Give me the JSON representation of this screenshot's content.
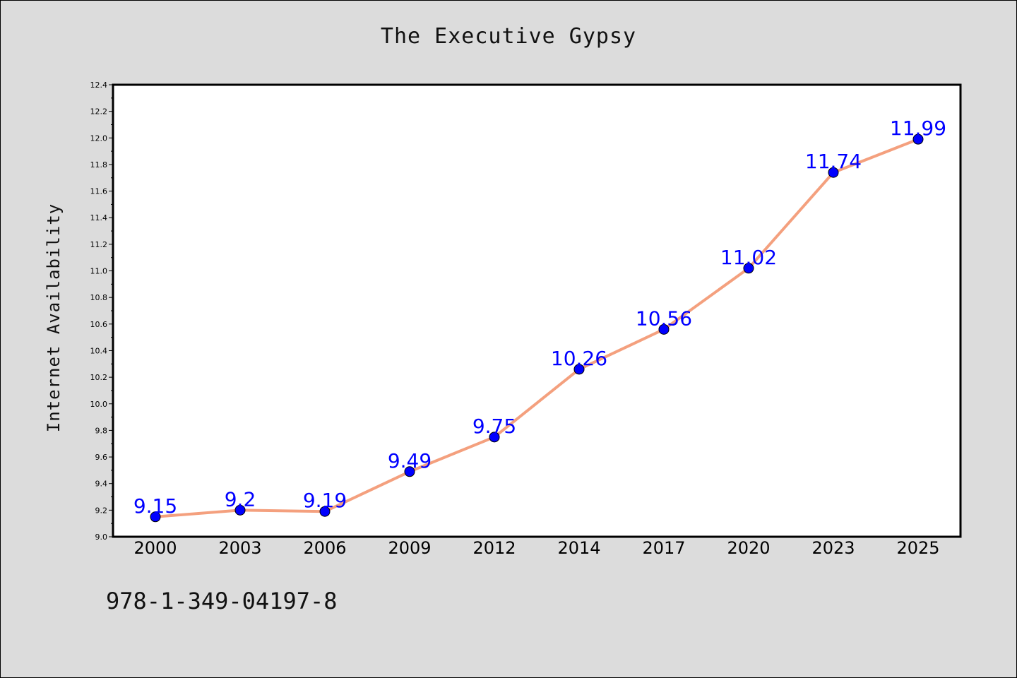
{
  "chart_data": {
    "type": "line",
    "title": "The Executive Gypsy",
    "xlabel": "",
    "ylabel": "Internet Availability",
    "categories": [
      "2000",
      "2003",
      "2006",
      "2009",
      "2012",
      "2014",
      "2017",
      "2020",
      "2023",
      "2025"
    ],
    "series": [
      {
        "values": [
          9.15,
          9.2,
          9.19,
          9.49,
          9.75,
          10.26,
          10.56,
          11.02,
          11.74,
          11.99
        ],
        "data_labels": [
          "9.15",
          "9.2",
          "9.19",
          "9.49",
          "9.75",
          "10.26",
          "10.56",
          "11.02",
          "11.74",
          "11.99"
        ],
        "line_color": "#f4a07e",
        "marker_color": "#0000ff",
        "label_color": "#0000ff"
      }
    ],
    "ylim": [
      9.0,
      12.4
    ],
    "yticks": [
      "9.0",
      "9.2",
      "9.4",
      "9.6",
      "9.8",
      "10.0",
      "10.2",
      "10.4",
      "10.6",
      "10.8",
      "11.0",
      "11.2",
      "11.4",
      "11.6",
      "11.8",
      "12.0",
      "12.2",
      "12.4"
    ],
    "grid": false,
    "legend": "none"
  },
  "footer": {
    "isbn": "978-1-349-04197-8"
  },
  "colors": {
    "background": "#dcdcdc",
    "plot_background": "#ffffff"
  }
}
